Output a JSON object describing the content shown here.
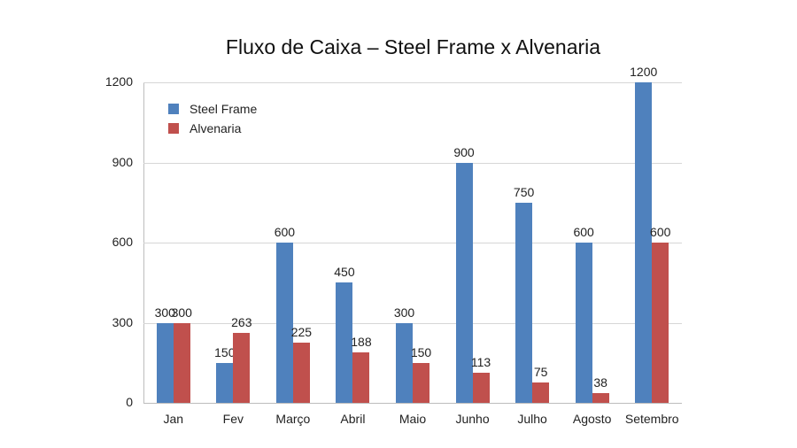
{
  "chart_data": {
    "type": "bar",
    "title": "Fluxo de Caixa – Steel Frame x Alvenaria",
    "xlabel": "",
    "ylabel": "",
    "ylim": [
      0,
      1200
    ],
    "yticks": [
      "0",
      "300",
      "600",
      "900",
      "1200"
    ],
    "grid": true,
    "legend_position": "upper-left inside",
    "categories": [
      "Jan",
      "Fev",
      "Março",
      "Abril",
      "Maio",
      "Junho",
      "Julho",
      "Agosto",
      "Setembro"
    ],
    "series": [
      {
        "name": "Steel Frame",
        "color": "#4f81bd",
        "values": [
          300,
          150,
          600,
          450,
          300,
          900,
          750,
          600,
          1200
        ]
      },
      {
        "name": "Alvenaria",
        "color": "#c0504d",
        "values": [
          300,
          263,
          225,
          188,
          150,
          113,
          75,
          38,
          600
        ]
      }
    ]
  }
}
